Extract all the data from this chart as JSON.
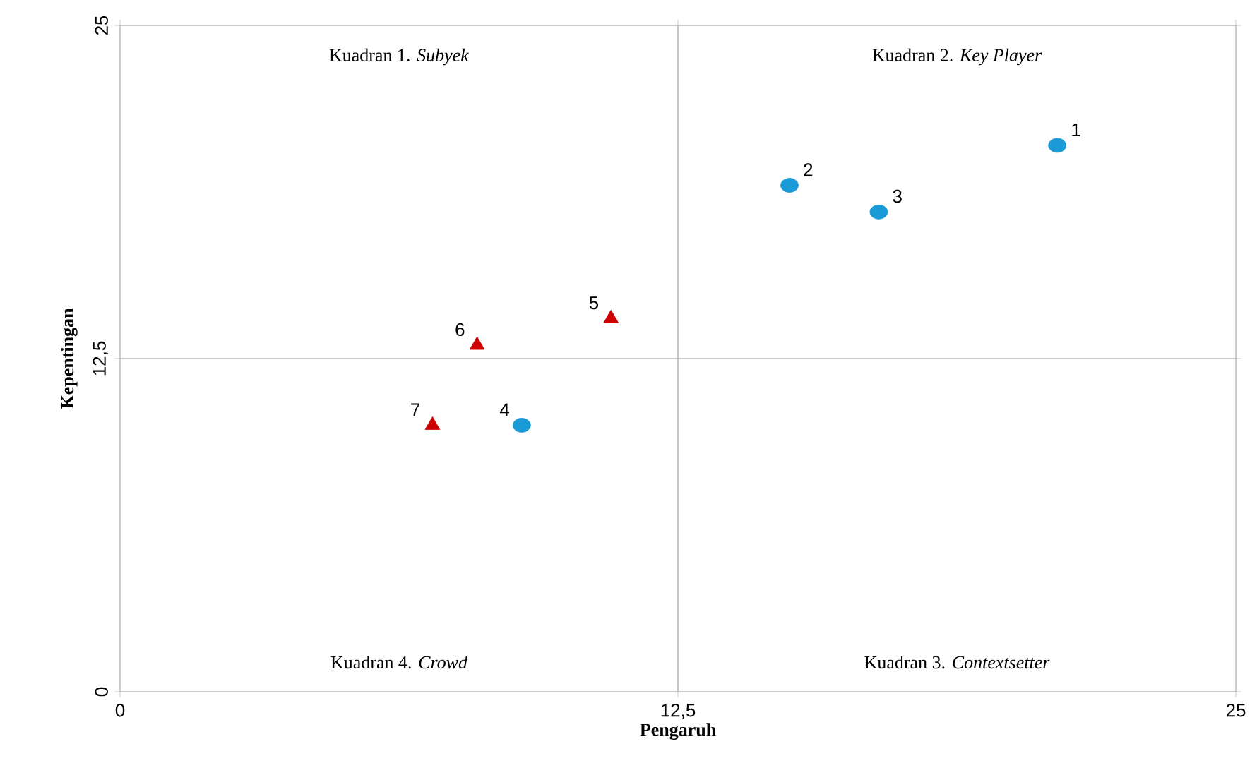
{
  "chart_data": {
    "type": "scatter",
    "xlabel": "Pengaruh",
    "ylabel": "Kepentingan",
    "xlim": [
      0,
      25
    ],
    "ylim": [
      0,
      25
    ],
    "xticks": [
      0,
      {
        "value": 12.5,
        "label": "12,5"
      },
      25
    ],
    "yticks": [
      0,
      {
        "value": 12.5,
        "label": "12,5"
      },
      25
    ],
    "series": [
      {
        "color": "#1a9ad6",
        "marker": "circle",
        "x": [
          21,
          15,
          17,
          9
        ],
        "values": [
          20.5,
          19,
          18,
          10
        ]
      },
      {
        "color": "#cc0000",
        "marker": "triangle",
        "x": [
          11,
          8,
          7
        ],
        "values": [
          14,
          13,
          10
        ]
      }
    ],
    "ref_lines": [
      {
        "axis": "x",
        "value": 12.5,
        "color": "#c4c4c4"
      },
      {
        "axis": "y",
        "value": 12.5,
        "color": "#9a9a9a"
      }
    ],
    "annotations": [
      "Kuadran 1. *Subyek*",
      "Kuadran 2. *Key Player*",
      "Kuadran 4. *Crowd*",
      "Kuadran 3. *Contextsetter*",
      {
        "text": "1",
        "x": 21,
        "y": 20.5
      },
      {
        "text": "2",
        "x": 15,
        "y": 19
      },
      {
        "text": "3",
        "x": 17,
        "y": 18
      },
      {
        "text": "4",
        "x": 9,
        "y": 10
      },
      {
        "text": "5",
        "x": 11,
        "y": 14
      },
      {
        "text": "6",
        "x": 8,
        "y": 13
      },
      {
        "text": "7",
        "x": 7,
        "y": 10
      }
    ],
    "grid": false
  }
}
